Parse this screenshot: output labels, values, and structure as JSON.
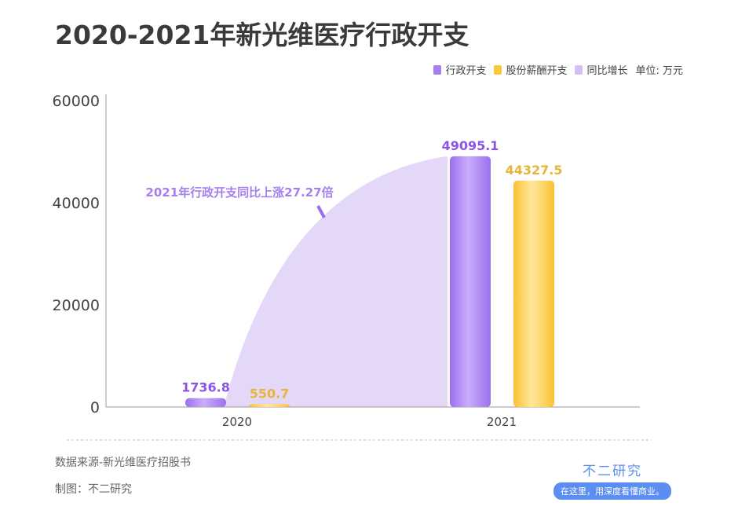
{
  "title": "2020-2021年新光维医疗行政开支",
  "legend": [
    {
      "label": "行政开支",
      "color": "#a57ff0"
    },
    {
      "label": "股份薪酬开支",
      "color": "#fbc93c"
    },
    {
      "label": "同比增长",
      "color": "#d2c0f6"
    }
  ],
  "unit": "单位: 万元",
  "source": "数据来源-新光维医疗招股书",
  "made_by": "制图：不二研究",
  "brand": {
    "name": "不二研究",
    "slogan": "在这里，用深度看懂商业。"
  },
  "chart_data": {
    "type": "bar",
    "categories": [
      "2020",
      "2021"
    ],
    "series": [
      {
        "name": "行政开支",
        "values": [
          1736.8,
          49095.1
        ],
        "color": "#a57ff0",
        "label_color": "#8a55e6"
      },
      {
        "name": "股份薪酬开支",
        "values": [
          550.7,
          44327.5
        ],
        "color": "#fbc93c",
        "label_color": "#e8b43a"
      }
    ],
    "ylim": [
      0,
      60000
    ],
    "yticks": [
      0,
      20000,
      40000,
      60000
    ],
    "annotation": "2021年行政开支同比上涨27.27倍",
    "grid": false
  }
}
